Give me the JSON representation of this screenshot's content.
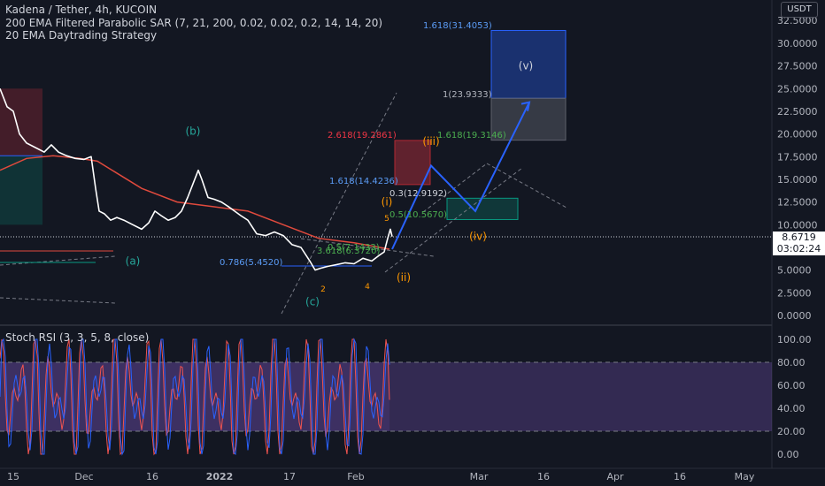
{
  "header": {
    "title": "Kadena / Tether, 4h, KUCOIN",
    "indicators": [
      "200 EMA Filtered Parabolic SAR (7, 21, 200, 0.02, 0.02, 0.2, 14, 14, 20)",
      "20 EMA Daytrading Strategy"
    ],
    "currency": "USDT"
  },
  "price_tag": {
    "price": "8.6719",
    "countdown": "03:02:24"
  },
  "oscillator": {
    "title": "Stoch RSI (3, 3, 5, 8, close)"
  },
  "colors": {
    "background": "#131722",
    "price_line": "#ffffff",
    "ema": "#e04a3d",
    "projection": "#2962ff",
    "stoch_band": "#7e57c2",
    "stoch_k": "#2962ff",
    "stoch_d": "#ef5350"
  },
  "chart_data": [
    {
      "type": "line",
      "x_ticks": [
        "15",
        "Dec",
        "16",
        "2022",
        "17",
        "Feb",
        "Mar",
        "16",
        "Apr",
        "16",
        "May"
      ],
      "y_ticks": [
        "32.5000",
        "30.0000",
        "27.5000",
        "25.0000",
        "22.5000",
        "20.0000",
        "17.5000",
        "15.0000",
        "12.5000",
        "10.0000",
        "7.5000",
        "5.0000",
        "2.5000",
        "0.0000"
      ],
      "ylim": [
        -1.5,
        34.5
      ],
      "series": [],
      "price_path": [
        [
          0,
          25
        ],
        [
          8,
          23
        ],
        [
          15,
          22.5
        ],
        [
          22,
          20
        ],
        [
          30,
          19
        ],
        [
          40,
          18.5
        ],
        [
          50,
          18
        ],
        [
          58,
          18.8
        ],
        [
          66,
          18
        ],
        [
          75,
          17.6
        ],
        [
          85,
          17.3
        ],
        [
          95,
          17.2
        ],
        [
          103,
          17.5
        ],
        [
          108,
          14
        ],
        [
          112,
          11.5
        ],
        [
          118,
          11.2
        ],
        [
          125,
          10.5
        ],
        [
          132,
          10.8
        ],
        [
          140,
          10.5
        ],
        [
          150,
          10
        ],
        [
          160,
          9.5
        ],
        [
          168,
          10.2
        ],
        [
          175,
          11.5
        ],
        [
          182,
          11
        ],
        [
          190,
          10.5
        ],
        [
          198,
          10.8
        ],
        [
          205,
          11.5
        ],
        [
          212,
          13
        ],
        [
          218,
          14.5
        ],
        [
          224,
          16
        ],
        [
          228,
          15
        ],
        [
          235,
          13
        ],
        [
          242,
          12.8
        ],
        [
          250,
          12.5
        ],
        [
          258,
          12
        ],
        [
          265,
          11.5
        ],
        [
          272,
          11
        ],
        [
          280,
          10.5
        ],
        [
          290,
          9
        ],
        [
          300,
          8.8
        ],
        [
          310,
          9.2
        ],
        [
          320,
          8.8
        ],
        [
          330,
          7.8
        ],
        [
          340,
          7.5
        ],
        [
          350,
          6
        ],
        [
          356,
          5
        ],
        [
          362,
          5.2
        ],
        [
          370,
          5.4
        ],
        [
          380,
          5.6
        ],
        [
          390,
          5.8
        ],
        [
          400,
          5.7
        ],
        [
          410,
          6.3
        ],
        [
          420,
          6
        ],
        [
          428,
          6.6
        ],
        [
          434,
          7
        ],
        [
          438,
          8.5
        ],
        [
          441,
          9.5
        ],
        [
          443,
          8.7
        ]
      ],
      "ema_path": [
        [
          0,
          16
        ],
        [
          30,
          17.3
        ],
        [
          60,
          17.6
        ],
        [
          90,
          17.3
        ],
        [
          110,
          17
        ],
        [
          130,
          15.8
        ],
        [
          160,
          14
        ],
        [
          200,
          12.5
        ],
        [
          240,
          12
        ],
        [
          280,
          11.5
        ],
        [
          320,
          10
        ],
        [
          360,
          8.5
        ],
        [
          400,
          8
        ],
        [
          440,
          7.3
        ]
      ],
      "projection_path": [
        [
          443,
          7.3
        ],
        [
          487,
          16.5
        ],
        [
          537,
          11.5
        ],
        [
          598,
          23.5
        ]
      ],
      "horizontal_refs": [
        {
          "label": "1.618(31.4053)",
          "value": 31.4053
        },
        {
          "label": "1(23.9333)",
          "value": 23.9333
        },
        {
          "label": "1.618(19.3146)",
          "value": 19.3146
        },
        {
          "label": "2.618(19.2861)",
          "value": 19.2861
        },
        {
          "label": "1.618(14.4236)",
          "value": 14.4236
        },
        {
          "label": "0.3(12.9192)",
          "value": 12.9192
        },
        {
          "label": "0.5(10.5670)",
          "value": 10.567
        },
        {
          "label": "0.5(7.1433)",
          "value": 7.1433
        },
        {
          "label": "3.618(6.3720)",
          "value": 6.372
        },
        {
          "label": "0.786(5.4520)",
          "value": 5.452
        }
      ],
      "wave_labels": [
        {
          "text": "(b)",
          "x": 218,
          "y": 20.3
        },
        {
          "text": "(a)",
          "x": 150,
          "y": 6
        },
        {
          "text": "(c)",
          "x": 353,
          "y": 1.5
        },
        {
          "text": "(i)",
          "x": 437,
          "y": 12.5
        },
        {
          "text": "(ii)",
          "x": 456,
          "y": 4.2
        },
        {
          "text": "(iii)",
          "x": 487,
          "y": 19.2
        },
        {
          "text": "(iv)",
          "x": 540,
          "y": 8.7
        },
        {
          "text": "(v)",
          "x": 594,
          "y": 27.5
        },
        {
          "text": "2",
          "x": 365,
          "y": 3
        },
        {
          "text": "4",
          "x": 415,
          "y": 3.3
        },
        {
          "text": "5",
          "x": 437,
          "y": 10.8
        }
      ]
    },
    {
      "type": "line",
      "title": "Stoch RSI (3, 3, 5, 8, close)",
      "y_ticks": [
        "100.00",
        "80.00",
        "60.00",
        "40.00",
        "20.00",
        "0.00"
      ],
      "ylim": [
        -5,
        105
      ],
      "upper_band": 80,
      "lower_band": 20,
      "series": []
    }
  ]
}
